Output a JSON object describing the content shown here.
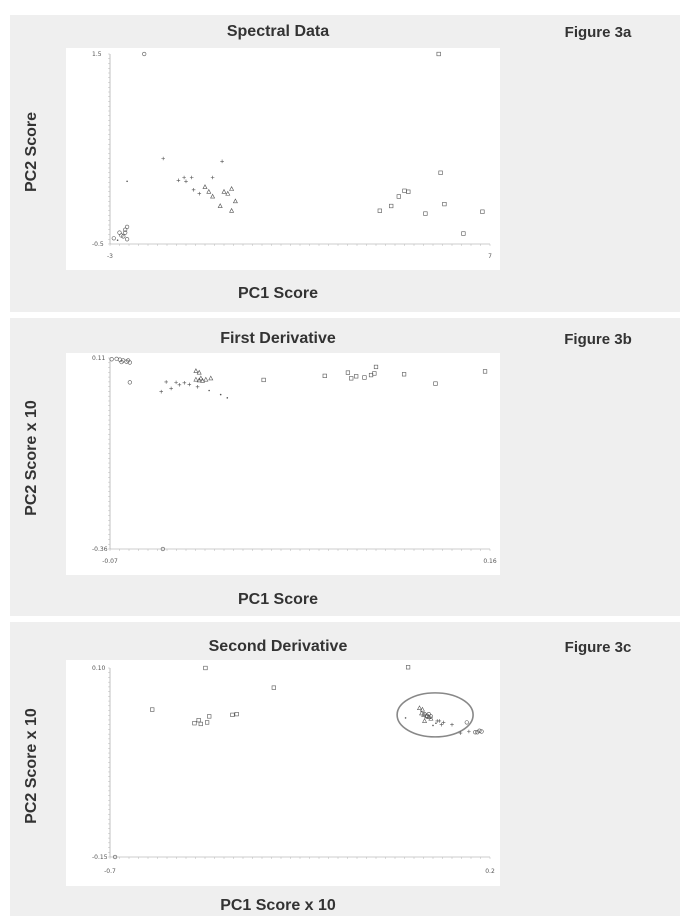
{
  "chart_data": [
    {
      "type": "scatter",
      "title": "Spectral Data",
      "figure_label": "Figure 3a",
      "xlabel": "PC1 Score",
      "ylabel": "PC2 Score",
      "xlim": [
        -3,
        7
      ],
      "ylim": [
        -0.5,
        1.5
      ],
      "x_tick_labels": [
        "-3",
        "7"
      ],
      "y_tick_labels": [
        "1.5",
        "-0.5"
      ],
      "series": [
        {
          "marker": "circle",
          "points": [
            [
              -2.1,
              1.5
            ],
            [
              -2.55,
              -0.45
            ],
            [
              -2.7,
              -0.41
            ],
            [
              -2.75,
              -0.38
            ],
            [
              -2.6,
              -0.38
            ],
            [
              -2.65,
              -0.42
            ],
            [
              -2.6,
              -0.35
            ],
            [
              -2.55,
              -0.32
            ],
            [
              -2.9,
              -0.44
            ]
          ]
        },
        {
          "marker": "plus",
          "points": [
            [
              -1.6,
              0.4
            ],
            [
              -0.8,
              0.07
            ],
            [
              -1.2,
              0.17
            ],
            [
              -1.05,
              0.2
            ],
            [
              -0.85,
              0.2
            ],
            [
              -0.65,
              0.03
            ],
            [
              -0.3,
              0.2
            ],
            [
              -0.05,
              0.37
            ],
            [
              -1.0,
              0.16
            ]
          ]
        },
        {
          "marker": "triangle",
          "points": [
            [
              -0.4,
              0.05
            ],
            [
              -0.3,
              0.0
            ],
            [
              -0.1,
              -0.1
            ],
            [
              0.0,
              0.05
            ],
            [
              0.2,
              0.08
            ],
            [
              0.3,
              -0.05
            ],
            [
              -0.5,
              0.1
            ],
            [
              0.1,
              0.03
            ],
            [
              0.2,
              -0.15
            ]
          ]
        },
        {
          "marker": "square",
          "points": [
            [
              4.1,
              -0.15
            ],
            [
              4.4,
              -0.1
            ],
            [
              4.6,
              0.0
            ],
            [
              4.75,
              0.06
            ],
            [
              4.85,
              0.05
            ],
            [
              5.3,
              -0.18
            ],
            [
              5.7,
              0.25
            ],
            [
              5.8,
              -0.08
            ],
            [
              6.3,
              -0.39
            ],
            [
              6.8,
              -0.16
            ],
            [
              5.65,
              1.5
            ]
          ]
        },
        {
          "marker": "dot",
          "points": [
            [
              -2.55,
              0.16
            ],
            [
              -2.8,
              -0.46
            ]
          ]
        }
      ]
    },
    {
      "type": "scatter",
      "title": "First Derivative",
      "figure_label": "Figure 3b",
      "xlabel": "PC1 Score",
      "ylabel": "PC2 Score x 10",
      "xlim": [
        -0.07,
        0.16
      ],
      "ylim": [
        -0.36,
        0.11
      ],
      "x_tick_labels": [
        "-0.07",
        "0.16"
      ],
      "y_tick_labels": [
        "0.11",
        "-0.36"
      ],
      "series": [
        {
          "marker": "circle",
          "points": [
            [
              -0.066,
              0.108
            ],
            [
              -0.064,
              0.106
            ],
            [
              -0.062,
              0.104
            ],
            [
              -0.063,
              0.1
            ],
            [
              -0.06,
              0.101
            ],
            [
              -0.058,
              0.099
            ],
            [
              -0.059,
              0.104
            ],
            [
              -0.058,
              0.05
            ],
            [
              -0.069,
              0.107
            ],
            [
              -0.038,
              -0.36
            ]
          ]
        },
        {
          "marker": "plus",
          "points": [
            [
              -0.036,
              0.051
            ],
            [
              -0.03,
              0.05
            ],
            [
              -0.025,
              0.049
            ],
            [
              -0.022,
              0.045
            ],
            [
              -0.028,
              0.044
            ],
            [
              -0.017,
              0.039
            ],
            [
              -0.033,
              0.035
            ],
            [
              -0.039,
              0.027
            ]
          ]
        },
        {
          "marker": "triangle",
          "points": [
            [
              -0.018,
              0.078
            ],
            [
              -0.016,
              0.074
            ],
            [
              -0.018,
              0.057
            ],
            [
              -0.016,
              0.055
            ],
            [
              -0.014,
              0.054
            ],
            [
              -0.012,
              0.057
            ],
            [
              -0.015,
              0.06
            ],
            [
              -0.009,
              0.06
            ]
          ]
        },
        {
          "marker": "square",
          "points": [
            [
              0.023,
              0.056
            ],
            [
              0.074,
              0.074
            ],
            [
              0.076,
              0.06
            ],
            [
              0.079,
              0.065
            ],
            [
              0.084,
              0.062
            ],
            [
              0.088,
              0.068
            ],
            [
              0.09,
              0.072
            ],
            [
              0.091,
              0.088
            ],
            [
              0.108,
              0.07
            ],
            [
              0.127,
              0.047
            ],
            [
              0.157,
              0.077
            ],
            [
              0.06,
              0.066
            ]
          ]
        },
        {
          "marker": "dot",
          "points": [
            [
              -0.01,
              0.03
            ],
            [
              -0.003,
              0.02
            ],
            [
              0.001,
              0.012
            ]
          ]
        }
      ]
    },
    {
      "type": "scatter",
      "title": "Second Derivative",
      "figure_label": "Figure 3c",
      "xlabel": "PC1 Score x 10",
      "ylabel": "PC2 Score x 10",
      "xlim": [
        -0.7,
        0.2
      ],
      "ylim": [
        -0.15,
        0.1
      ],
      "x_tick_labels": [
        "-0.7",
        "0.2"
      ],
      "y_tick_labels": [
        "0.10",
        "-0.15"
      ],
      "annotation": "ellipse around the cluster near the right",
      "series": [
        {
          "marker": "square",
          "points": [
            [
              -0.474,
              0.1
            ],
            [
              -0.6,
              0.045
            ],
            [
              -0.5,
              0.027
            ],
            [
              -0.465,
              0.036
            ],
            [
              -0.41,
              0.038
            ],
            [
              -0.4,
              0.039
            ],
            [
              -0.312,
              0.074
            ],
            [
              -0.49,
              0.031
            ],
            [
              -0.47,
              0.028
            ],
            [
              -0.485,
              0.026
            ],
            [
              0.006,
              0.101
            ]
          ]
        },
        {
          "marker": "triangle",
          "points": [
            [
              0.033,
              0.047
            ],
            [
              0.04,
              0.045
            ],
            [
              0.038,
              0.04
            ],
            [
              0.043,
              0.038
            ],
            [
              0.05,
              0.036
            ],
            [
              0.055,
              0.035
            ],
            [
              0.06,
              0.033
            ],
            [
              0.045,
              0.03
            ]
          ]
        },
        {
          "marker": "circle",
          "points": [
            [
              0.045,
              0.039
            ],
            [
              0.05,
              0.037
            ],
            [
              0.055,
              0.039
            ],
            [
              0.06,
              0.036
            ],
            [
              0.145,
              0.028
            ],
            [
              0.165,
              0.015
            ],
            [
              0.17,
              0.015
            ],
            [
              0.175,
              0.017
            ],
            [
              0.18,
              0.016
            ],
            [
              -0.688,
              -0.15
            ]
          ]
        },
        {
          "marker": "plus",
          "points": [
            [
              0.075,
              0.03
            ],
            [
              0.08,
              0.03
            ],
            [
              0.09,
              0.028
            ],
            [
              0.085,
              0.025
            ],
            [
              0.11,
              0.025
            ],
            [
              0.13,
              0.014
            ],
            [
              0.15,
              0.016
            ]
          ]
        },
        {
          "marker": "dot",
          "points": [
            [
              0.0,
              0.034
            ],
            [
              0.065,
              0.024
            ],
            [
              0.072,
              0.027
            ]
          ]
        }
      ]
    }
  ]
}
